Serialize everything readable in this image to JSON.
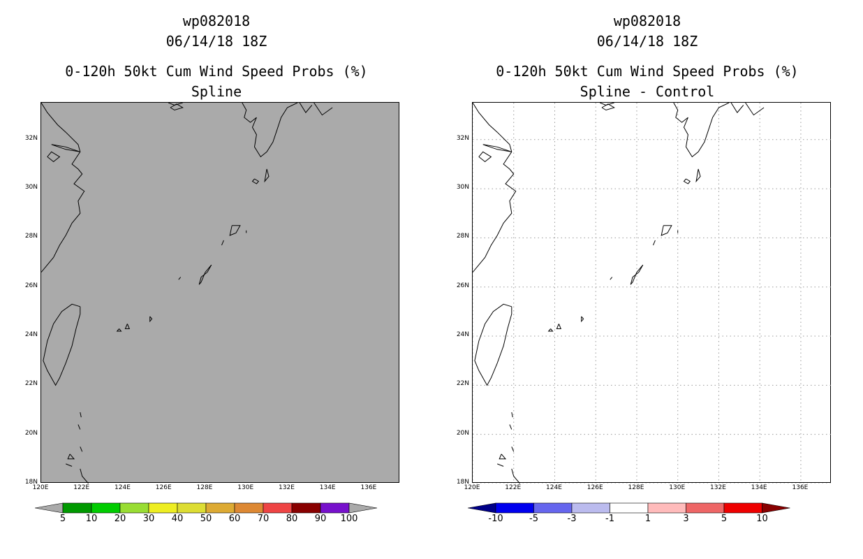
{
  "left": {
    "storm_id": "wp082018",
    "datetime": "06/14/18 18Z",
    "product": "0-120h 50kt Cum Wind Speed Probs (%)",
    "subtitle": "Spline",
    "background": "#aaaaaa",
    "colorbar": {
      "labels": [
        "5",
        "10",
        "20",
        "30",
        "40",
        "50",
        "60",
        "70",
        "80",
        "90",
        "100"
      ],
      "colors": [
        "#009900",
        "#00cc00",
        "#99dd33",
        "#eeee22",
        "#dddd33",
        "#ddaa33",
        "#dd8833",
        "#ee4444",
        "#880000",
        "#7711cc"
      ],
      "end_color_low": "#aaaaaa",
      "end_color_high": "#aaaaaa"
    }
  },
  "right": {
    "storm_id": "wp082018",
    "datetime": "06/14/18 18Z",
    "product": "0-120h 50kt Cum Wind Speed Probs (%)",
    "subtitle": "Spline - Control",
    "background": "#ffffff",
    "colorbar": {
      "labels": [
        "-10",
        "-5",
        "-3",
        "-1",
        "1",
        "3",
        "5",
        "10"
      ],
      "colors": [
        "#0000ee",
        "#6666ee",
        "#bbbbee",
        "#ffffff",
        "#ffbbbb",
        "#ee6666",
        "#ee0000"
      ],
      "end_color_low": "#000088",
      "end_color_high": "#880000"
    }
  },
  "map": {
    "lat_labels": [
      "32N",
      "30N",
      "28N",
      "26N",
      "24N",
      "22N",
      "20N",
      "18N"
    ],
    "lat_values": [
      32,
      30,
      28,
      26,
      24,
      22,
      20,
      18
    ],
    "lon_labels": [
      "120E",
      "122E",
      "124E",
      "126E",
      "128E",
      "130E",
      "132E",
      "134E",
      "136E"
    ],
    "lon_values": [
      120,
      122,
      124,
      126,
      128,
      130,
      132,
      134,
      136
    ],
    "lat_range": [
      18,
      33.5
    ],
    "lon_range": [
      120,
      137.5
    ]
  }
}
